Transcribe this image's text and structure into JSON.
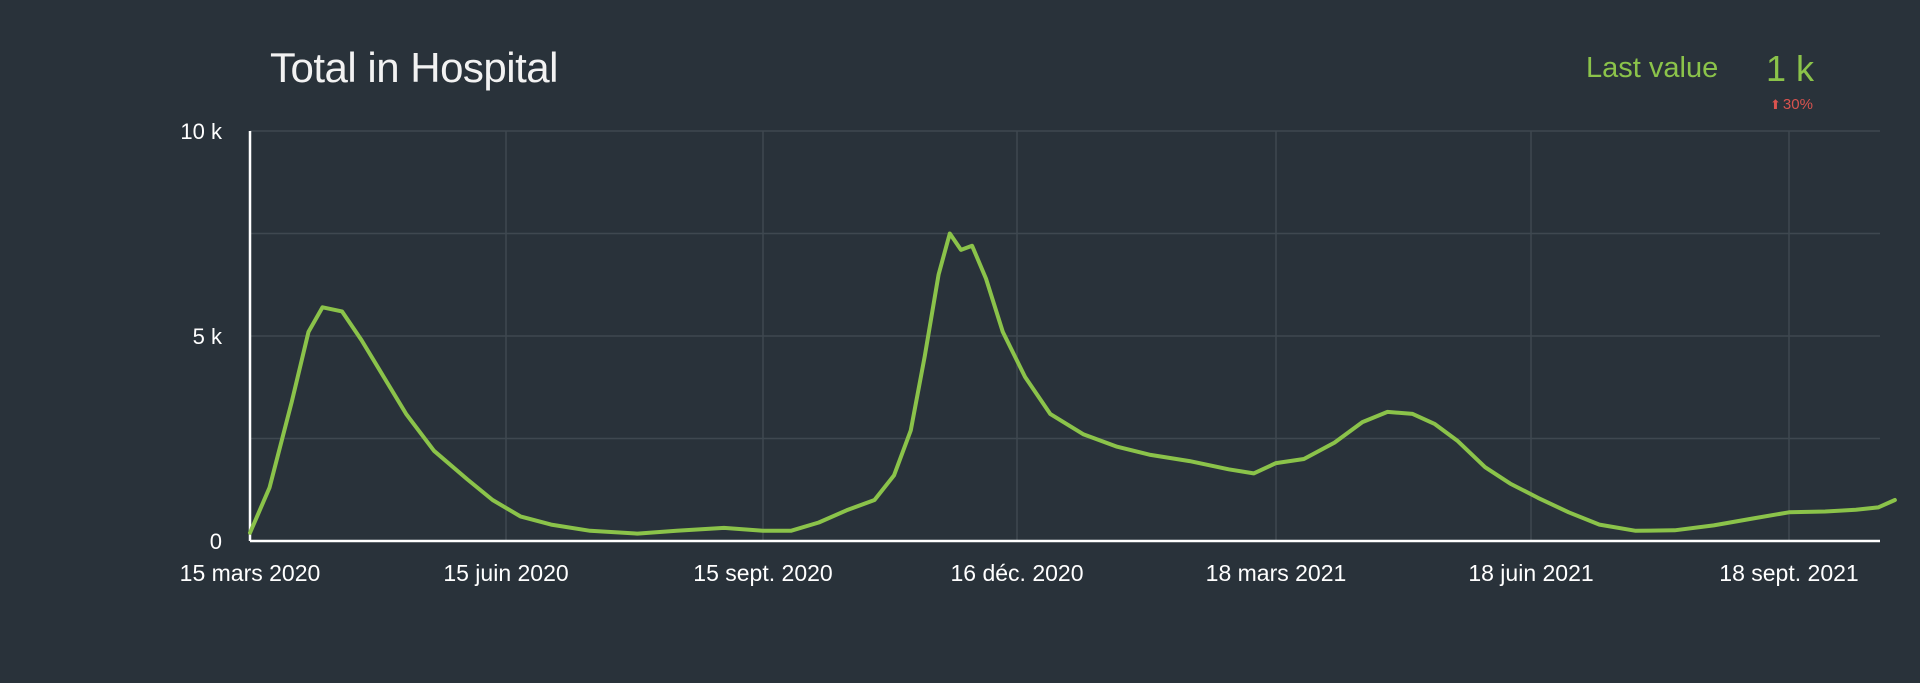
{
  "header": {
    "title": "Total in Hospital",
    "last_value_label": "Last value",
    "last_value": "1 k",
    "change_arrow": "⬆",
    "change_pct": "30%"
  },
  "colors": {
    "background": "#29323a",
    "line": "#8bc34a",
    "grid": "#3f4850",
    "axis": "#ffffff",
    "change": "#d9534f"
  },
  "chart_data": {
    "type": "line",
    "title": "Total in Hospital",
    "xlabel": "",
    "ylabel": "",
    "ylim": [
      0,
      10000
    ],
    "grid": true,
    "y_ticks": [
      {
        "value": 0,
        "label": "0"
      },
      {
        "value": 5000,
        "label": "5 k"
      },
      {
        "value": 10000,
        "label": "10 k"
      }
    ],
    "x_ticks": [
      {
        "date": "2020-03-15",
        "label": "15 mars 2020"
      },
      {
        "date": "2020-06-15",
        "label": "15 juin 2020"
      },
      {
        "date": "2020-09-15",
        "label": "15 sept. 2020"
      },
      {
        "date": "2020-12-16",
        "label": "16 déc. 2020"
      },
      {
        "date": "2021-03-18",
        "label": "18 mars 2021"
      },
      {
        "date": "2021-06-18",
        "label": "18 juin 2021"
      },
      {
        "date": "2021-09-18",
        "label": "18 sept. 2021"
      }
    ],
    "series": [
      {
        "values": [
          [
            "2020-03-15",
            200
          ],
          [
            "2020-03-22",
            1300
          ],
          [
            "2020-03-30",
            3400
          ],
          [
            "2020-04-05",
            5100
          ],
          [
            "2020-04-10",
            5700
          ],
          [
            "2020-04-17",
            5600
          ],
          [
            "2020-04-24",
            4900
          ],
          [
            "2020-05-02",
            4000
          ],
          [
            "2020-05-10",
            3100
          ],
          [
            "2020-05-20",
            2200
          ],
          [
            "2020-06-01",
            1500
          ],
          [
            "2020-06-10",
            1000
          ],
          [
            "2020-06-20",
            600
          ],
          [
            "2020-07-01",
            400
          ],
          [
            "2020-07-15",
            250
          ],
          [
            "2020-08-01",
            180
          ],
          [
            "2020-08-15",
            250
          ],
          [
            "2020-09-01",
            320
          ],
          [
            "2020-09-15",
            250
          ],
          [
            "2020-09-25",
            250
          ],
          [
            "2020-10-05",
            450
          ],
          [
            "2020-10-15",
            750
          ],
          [
            "2020-10-25",
            1000
          ],
          [
            "2020-11-01",
            1600
          ],
          [
            "2020-11-07",
            2700
          ],
          [
            "2020-11-12",
            4500
          ],
          [
            "2020-11-17",
            6500
          ],
          [
            "2020-11-21",
            7500
          ],
          [
            "2020-11-25",
            7100
          ],
          [
            "2020-11-29",
            7200
          ],
          [
            "2020-12-04",
            6400
          ],
          [
            "2020-12-10",
            5100
          ],
          [
            "2020-12-18",
            4000
          ],
          [
            "2020-12-27",
            3100
          ],
          [
            "2021-01-08",
            2600
          ],
          [
            "2021-01-20",
            2300
          ],
          [
            "2021-02-01",
            2100
          ],
          [
            "2021-02-15",
            1950
          ],
          [
            "2021-03-01",
            1750
          ],
          [
            "2021-03-10",
            1650
          ],
          [
            "2021-03-18",
            1900
          ],
          [
            "2021-03-28",
            2000
          ],
          [
            "2021-04-08",
            2400
          ],
          [
            "2021-04-18",
            2900
          ],
          [
            "2021-04-27",
            3150
          ],
          [
            "2021-05-06",
            3100
          ],
          [
            "2021-05-14",
            2850
          ],
          [
            "2021-05-22",
            2450
          ],
          [
            "2021-06-01",
            1800
          ],
          [
            "2021-06-10",
            1400
          ],
          [
            "2021-06-20",
            1050
          ],
          [
            "2021-07-01",
            700
          ],
          [
            "2021-07-12",
            400
          ],
          [
            "2021-07-25",
            250
          ],
          [
            "2021-08-08",
            260
          ],
          [
            "2021-08-22",
            380
          ],
          [
            "2021-09-05",
            550
          ],
          [
            "2021-09-18",
            700
          ],
          [
            "2021-10-01",
            720
          ],
          [
            "2021-10-12",
            760
          ],
          [
            "2021-10-20",
            820
          ],
          [
            "2021-10-26",
            1000
          ]
        ]
      }
    ]
  }
}
